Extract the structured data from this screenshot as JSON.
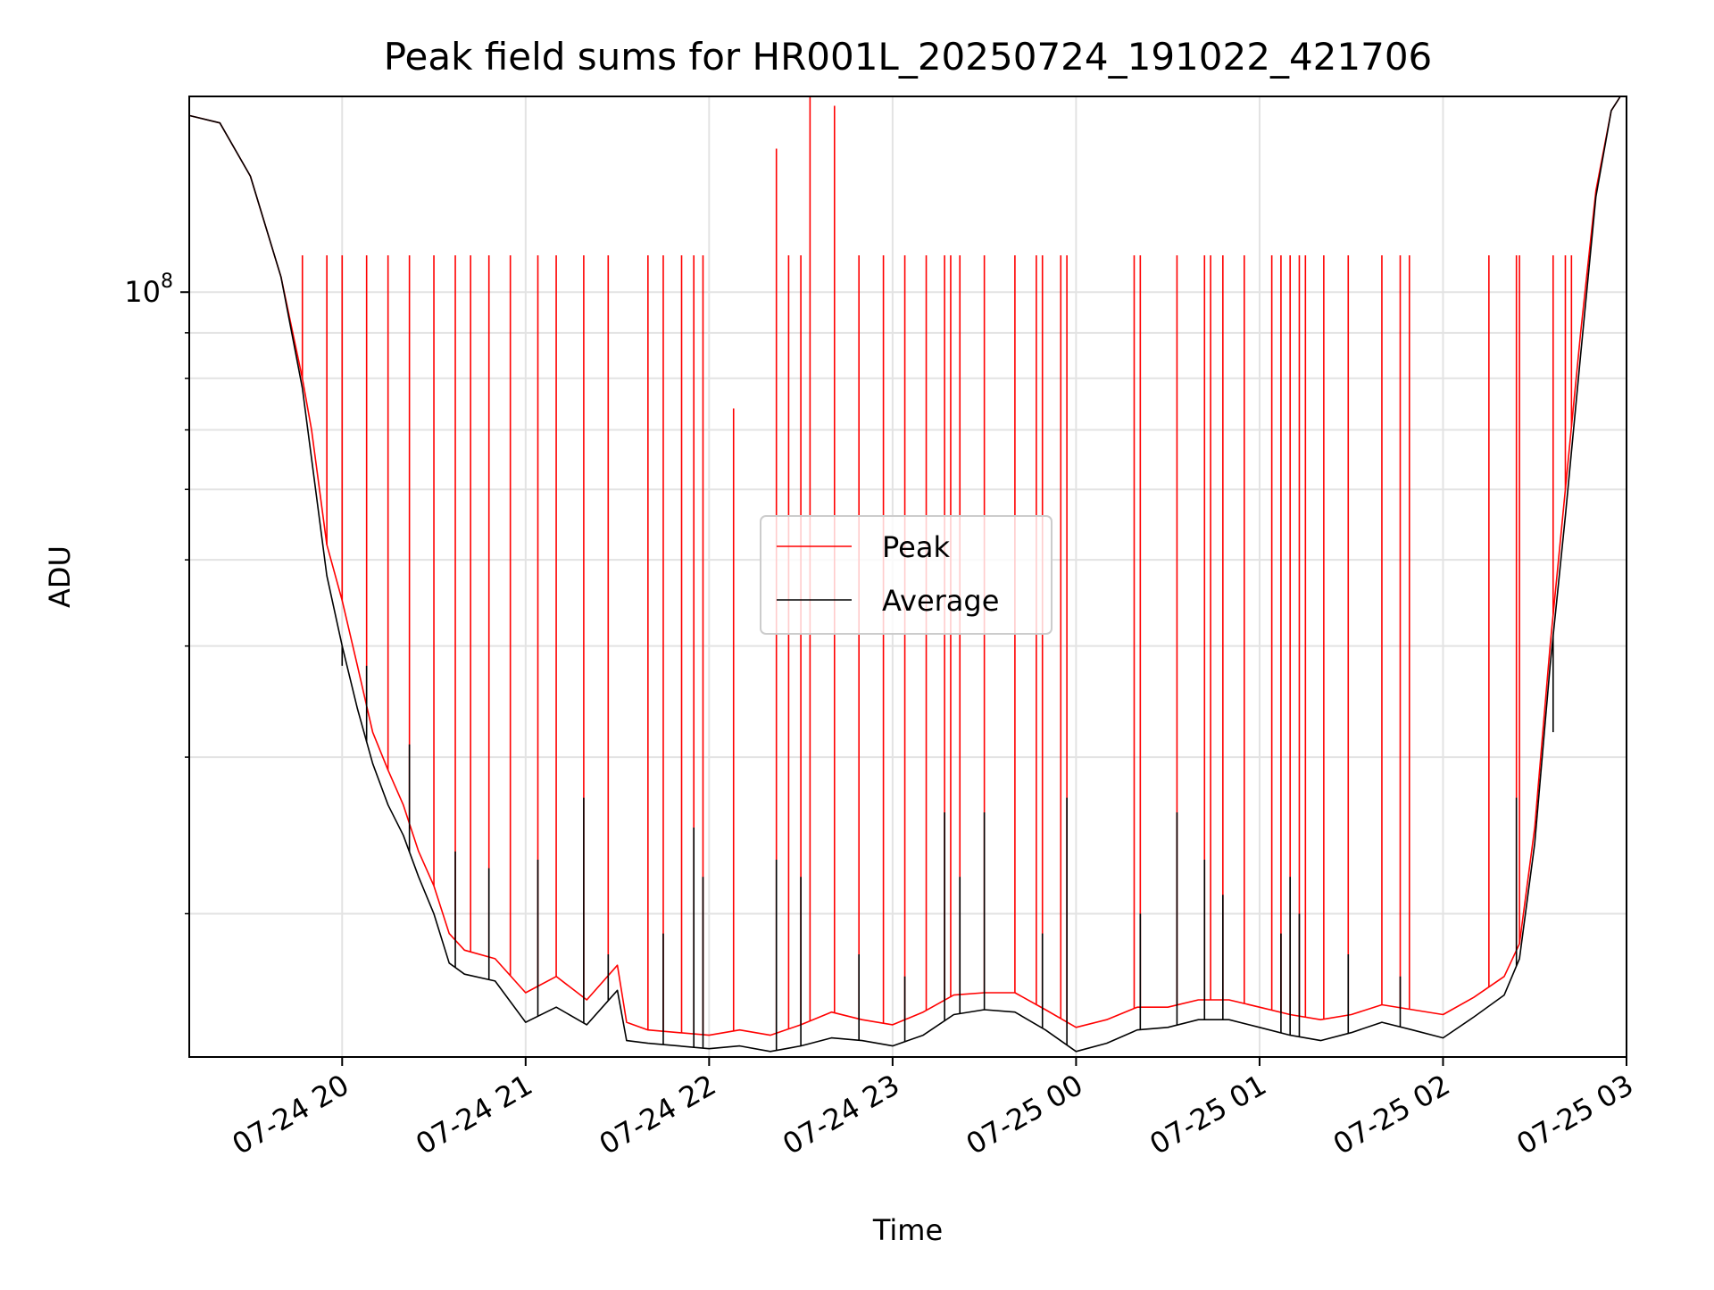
{
  "colors": {
    "peak": "#ff0000",
    "average": "#000000",
    "grid": "#e3e3e3"
  },
  "chart_data": {
    "type": "line",
    "title": "Peak field sums for HR001L_20250724_191022_421706",
    "xlabel": "Time",
    "ylabel": "ADU",
    "y_scale": "log",
    "ylim": [
      13800000,
      166000000
    ],
    "xlim": [
      "2025-07-24T19:10",
      "2025-07-25T03:00"
    ],
    "grid": true,
    "legend_position": "center",
    "x_ticks": [
      {
        "value": "2025-07-24T20:00",
        "label": "07-24 20"
      },
      {
        "value": "2025-07-24T21:00",
        "label": "07-24 21"
      },
      {
        "value": "2025-07-24T22:00",
        "label": "07-24 22"
      },
      {
        "value": "2025-07-24T23:00",
        "label": "07-24 23"
      },
      {
        "value": "2025-07-25T00:00",
        "label": "07-25 00"
      },
      {
        "value": "2025-07-25T01:00",
        "label": "07-25 01"
      },
      {
        "value": "2025-07-25T02:00",
        "label": "07-25 02"
      },
      {
        "value": "2025-07-25T03:00",
        "label": "07-25 03"
      }
    ],
    "y_ticks": [
      {
        "value": 100000000,
        "base": "10",
        "exponent": "8"
      }
    ],
    "y_minor_ticks": [
      20000000,
      30000000,
      40000000,
      50000000,
      60000000,
      70000000,
      80000000,
      90000000
    ],
    "series": [
      {
        "name": "Peak",
        "color": "#ff0000",
        "points": [
          [
            "2025-07-24T19:10",
            158000000
          ],
          [
            "2025-07-24T19:20",
            155000000
          ],
          [
            "2025-07-24T19:30",
            135000000
          ],
          [
            "2025-07-24T19:40",
            104000000
          ],
          [
            "2025-07-24T19:47",
            80000000
          ],
          [
            "2025-07-24T19:50",
            70000000
          ],
          [
            "2025-07-24T19:55",
            52000000
          ],
          [
            "2025-07-24T20:00",
            45000000
          ],
          [
            "2025-07-24T20:05",
            38000000
          ],
          [
            "2025-07-24T20:10",
            32000000
          ],
          [
            "2025-07-24T20:15",
            29000000
          ],
          [
            "2025-07-24T20:20",
            26500000
          ],
          [
            "2025-07-24T20:25",
            23500000
          ],
          [
            "2025-07-24T20:30",
            21500000
          ],
          [
            "2025-07-24T20:35",
            19000000
          ],
          [
            "2025-07-24T20:40",
            18200000
          ],
          [
            "2025-07-24T20:50",
            17800000
          ],
          [
            "2025-07-24T21:00",
            16300000
          ],
          [
            "2025-07-24T21:10",
            17000000
          ],
          [
            "2025-07-24T21:20",
            16000000
          ],
          [
            "2025-07-24T21:30",
            17500000
          ],
          [
            "2025-07-24T21:33",
            15100000
          ],
          [
            "2025-07-24T21:40",
            14800000
          ],
          [
            "2025-07-24T21:50",
            14700000
          ],
          [
            "2025-07-24T22:00",
            14600000
          ],
          [
            "2025-07-24T22:10",
            14800000
          ],
          [
            "2025-07-24T22:20",
            14600000
          ],
          [
            "2025-07-24T22:30",
            15000000
          ],
          [
            "2025-07-24T22:40",
            15500000
          ],
          [
            "2025-07-24T22:50",
            15200000
          ],
          [
            "2025-07-24T23:00",
            15000000
          ],
          [
            "2025-07-24T23:10",
            15500000
          ],
          [
            "2025-07-24T23:20",
            16200000
          ],
          [
            "2025-07-24T23:30",
            16300000
          ],
          [
            "2025-07-24T23:40",
            16300000
          ],
          [
            "2025-07-24T23:50",
            15600000
          ],
          [
            "2025-07-25T00:00",
            14900000
          ],
          [
            "2025-07-25T00:10",
            15200000
          ],
          [
            "2025-07-25T00:20",
            15700000
          ],
          [
            "2025-07-25T00:30",
            15700000
          ],
          [
            "2025-07-25T00:40",
            16000000
          ],
          [
            "2025-07-25T00:50",
            16000000
          ],
          [
            "2025-07-25T01:00",
            15700000
          ],
          [
            "2025-07-25T01:10",
            15400000
          ],
          [
            "2025-07-25T01:20",
            15200000
          ],
          [
            "2025-07-25T01:30",
            15400000
          ],
          [
            "2025-07-25T01:40",
            15800000
          ],
          [
            "2025-07-25T01:50",
            15600000
          ],
          [
            "2025-07-25T02:00",
            15400000
          ],
          [
            "2025-07-25T02:10",
            16100000
          ],
          [
            "2025-07-25T02:20",
            17000000
          ],
          [
            "2025-07-25T02:25",
            18500000
          ],
          [
            "2025-07-25T02:30",
            25000000
          ],
          [
            "2025-07-25T02:35",
            40000000
          ],
          [
            "2025-07-25T02:40",
            60000000
          ],
          [
            "2025-07-25T02:45",
            90000000
          ],
          [
            "2025-07-25T02:50",
            130000000
          ],
          [
            "2025-07-25T02:55",
            160000000
          ],
          [
            "2025-07-25T02:58",
            166000000
          ]
        ],
        "spikes": [
          [
            "2025-07-24T19:47",
            110000000
          ],
          [
            "2025-07-24T19:55",
            110000000
          ],
          [
            "2025-07-24T20:00",
            110000000
          ],
          [
            "2025-07-24T20:08",
            110000000
          ],
          [
            "2025-07-24T20:15",
            110000000
          ],
          [
            "2025-07-24T20:22",
            110000000
          ],
          [
            "2025-07-24T20:30",
            110000000
          ],
          [
            "2025-07-24T20:37",
            110000000
          ],
          [
            "2025-07-24T20:42",
            110000000
          ],
          [
            "2025-07-24T20:48",
            110000000
          ],
          [
            "2025-07-24T20:55",
            110000000
          ],
          [
            "2025-07-24T21:04",
            110000000
          ],
          [
            "2025-07-24T21:10",
            110000000
          ],
          [
            "2025-07-24T21:19",
            110000000
          ],
          [
            "2025-07-24T21:27",
            110000000
          ],
          [
            "2025-07-24T21:40",
            110000000
          ],
          [
            "2025-07-24T21:45",
            110000000
          ],
          [
            "2025-07-24T21:51",
            110000000
          ],
          [
            "2025-07-24T21:55",
            110000000
          ],
          [
            "2025-07-24T21:58",
            110000000
          ],
          [
            "2025-07-24T22:08",
            74000000
          ],
          [
            "2025-07-24T22:22",
            145000000
          ],
          [
            "2025-07-24T22:26",
            110000000
          ],
          [
            "2025-07-24T22:30",
            110000000
          ],
          [
            "2025-07-24T22:33",
            166000000
          ],
          [
            "2025-07-24T22:41",
            162000000
          ],
          [
            "2025-07-24T22:49",
            110000000
          ],
          [
            "2025-07-24T22:57",
            110000000
          ],
          [
            "2025-07-24T23:04",
            110000000
          ],
          [
            "2025-07-24T23:11",
            110000000
          ],
          [
            "2025-07-24T23:17",
            110000000
          ],
          [
            "2025-07-24T23:19",
            110000000
          ],
          [
            "2025-07-24T23:22",
            110000000
          ],
          [
            "2025-07-24T23:30",
            110000000
          ],
          [
            "2025-07-24T23:40",
            110000000
          ],
          [
            "2025-07-24T23:47",
            110000000
          ],
          [
            "2025-07-24T23:49",
            110000000
          ],
          [
            "2025-07-24T23:55",
            110000000
          ],
          [
            "2025-07-24T23:57",
            110000000
          ],
          [
            "2025-07-25T00:19",
            110000000
          ],
          [
            "2025-07-25T00:21",
            110000000
          ],
          [
            "2025-07-25T00:33",
            110000000
          ],
          [
            "2025-07-25T00:42",
            110000000
          ],
          [
            "2025-07-25T00:44",
            110000000
          ],
          [
            "2025-07-25T00:48",
            110000000
          ],
          [
            "2025-07-25T00:55",
            110000000
          ],
          [
            "2025-07-25T01:04",
            110000000
          ],
          [
            "2025-07-25T01:07",
            110000000
          ],
          [
            "2025-07-25T01:10",
            110000000
          ],
          [
            "2025-07-25T01:13",
            110000000
          ],
          [
            "2025-07-25T01:15",
            110000000
          ],
          [
            "2025-07-25T01:21",
            110000000
          ],
          [
            "2025-07-25T01:29",
            110000000
          ],
          [
            "2025-07-25T01:40",
            110000000
          ],
          [
            "2025-07-25T01:46",
            110000000
          ],
          [
            "2025-07-25T01:49",
            110000000
          ],
          [
            "2025-07-25T02:15",
            110000000
          ],
          [
            "2025-07-25T02:24",
            110000000
          ],
          [
            "2025-07-25T02:25",
            110000000
          ],
          [
            "2025-07-25T02:36",
            110000000
          ],
          [
            "2025-07-25T02:40",
            110000000
          ],
          [
            "2025-07-25T02:42",
            110000000
          ]
        ]
      },
      {
        "name": "Average",
        "color": "#000000",
        "points": [
          [
            "2025-07-24T19:10",
            158000000
          ],
          [
            "2025-07-24T19:20",
            155000000
          ],
          [
            "2025-07-24T19:30",
            135000000
          ],
          [
            "2025-07-24T19:40",
            104000000
          ],
          [
            "2025-07-24T19:47",
            78000000
          ],
          [
            "2025-07-24T19:50",
            65000000
          ],
          [
            "2025-07-24T19:55",
            48000000
          ],
          [
            "2025-07-24T20:00",
            40000000
          ],
          [
            "2025-07-24T20:05",
            34000000
          ],
          [
            "2025-07-24T20:10",
            29500000
          ],
          [
            "2025-07-24T20:15",
            26500000
          ],
          [
            "2025-07-24T20:20",
            24500000
          ],
          [
            "2025-07-24T20:25",
            22000000
          ],
          [
            "2025-07-24T20:30",
            20000000
          ],
          [
            "2025-07-24T20:35",
            17600000
          ],
          [
            "2025-07-24T20:40",
            17100000
          ],
          [
            "2025-07-24T20:50",
            16800000
          ],
          [
            "2025-07-24T21:00",
            15100000
          ],
          [
            "2025-07-24T21:10",
            15700000
          ],
          [
            "2025-07-24T21:20",
            15000000
          ],
          [
            "2025-07-24T21:30",
            16400000
          ],
          [
            "2025-07-24T21:33",
            14400000
          ],
          [
            "2025-07-24T21:40",
            14300000
          ],
          [
            "2025-07-24T21:50",
            14200000
          ],
          [
            "2025-07-24T22:00",
            14100000
          ],
          [
            "2025-07-24T22:10",
            14200000
          ],
          [
            "2025-07-24T22:20",
            14000000
          ],
          [
            "2025-07-24T22:30",
            14200000
          ],
          [
            "2025-07-24T22:40",
            14500000
          ],
          [
            "2025-07-24T22:50",
            14400000
          ],
          [
            "2025-07-24T23:00",
            14200000
          ],
          [
            "2025-07-24T23:10",
            14600000
          ],
          [
            "2025-07-24T23:20",
            15400000
          ],
          [
            "2025-07-24T23:30",
            15600000
          ],
          [
            "2025-07-24T23:40",
            15500000
          ],
          [
            "2025-07-24T23:50",
            14800000
          ],
          [
            "2025-07-25T00:00",
            14000000
          ],
          [
            "2025-07-25T00:10",
            14300000
          ],
          [
            "2025-07-25T00:20",
            14800000
          ],
          [
            "2025-07-25T00:30",
            14900000
          ],
          [
            "2025-07-25T00:40",
            15200000
          ],
          [
            "2025-07-25T00:50",
            15200000
          ],
          [
            "2025-07-25T01:00",
            14900000
          ],
          [
            "2025-07-25T01:10",
            14600000
          ],
          [
            "2025-07-25T01:20",
            14400000
          ],
          [
            "2025-07-25T01:30",
            14700000
          ],
          [
            "2025-07-25T01:40",
            15100000
          ],
          [
            "2025-07-25T01:50",
            14800000
          ],
          [
            "2025-07-25T02:00",
            14500000
          ],
          [
            "2025-07-25T02:10",
            15300000
          ],
          [
            "2025-07-25T02:20",
            16200000
          ],
          [
            "2025-07-25T02:25",
            17800000
          ],
          [
            "2025-07-25T02:30",
            24000000
          ],
          [
            "2025-07-25T02:35",
            38000000
          ],
          [
            "2025-07-25T02:40",
            56000000
          ],
          [
            "2025-07-25T02:45",
            85000000
          ],
          [
            "2025-07-25T02:50",
            128000000
          ],
          [
            "2025-07-25T02:55",
            160000000
          ],
          [
            "2025-07-25T02:58",
            166000000
          ]
        ],
        "spikes": [
          [
            "2025-07-24T20:00",
            38000000
          ],
          [
            "2025-07-24T20:08",
            38000000
          ],
          [
            "2025-07-24T20:22",
            31000000
          ],
          [
            "2025-07-24T20:37",
            23500000
          ],
          [
            "2025-07-24T20:48",
            22500000
          ],
          [
            "2025-07-24T21:04",
            23000000
          ],
          [
            "2025-07-24T21:19",
            27000000
          ],
          [
            "2025-07-24T21:27",
            18000000
          ],
          [
            "2025-07-24T21:45",
            19000000
          ],
          [
            "2025-07-24T21:55",
            25000000
          ],
          [
            "2025-07-24T21:58",
            22000000
          ],
          [
            "2025-07-24T22:22",
            23000000
          ],
          [
            "2025-07-24T22:30",
            22000000
          ],
          [
            "2025-07-24T22:49",
            18000000
          ],
          [
            "2025-07-24T23:04",
            17000000
          ],
          [
            "2025-07-24T23:17",
            26000000
          ],
          [
            "2025-07-24T23:22",
            22000000
          ],
          [
            "2025-07-24T23:30",
            26000000
          ],
          [
            "2025-07-24T23:49",
            19000000
          ],
          [
            "2025-07-24T23:57",
            27000000
          ],
          [
            "2025-07-25T00:21",
            20000000
          ],
          [
            "2025-07-25T00:33",
            26000000
          ],
          [
            "2025-07-25T00:42",
            23000000
          ],
          [
            "2025-07-25T00:48",
            21000000
          ],
          [
            "2025-07-25T01:07",
            19000000
          ],
          [
            "2025-07-25T01:10",
            22000000
          ],
          [
            "2025-07-25T01:13",
            20000000
          ],
          [
            "2025-07-25T01:29",
            18000000
          ],
          [
            "2025-07-25T01:46",
            17000000
          ],
          [
            "2025-07-25T02:24",
            27000000
          ],
          [
            "2025-07-25T02:36",
            32000000
          ]
        ]
      }
    ]
  }
}
